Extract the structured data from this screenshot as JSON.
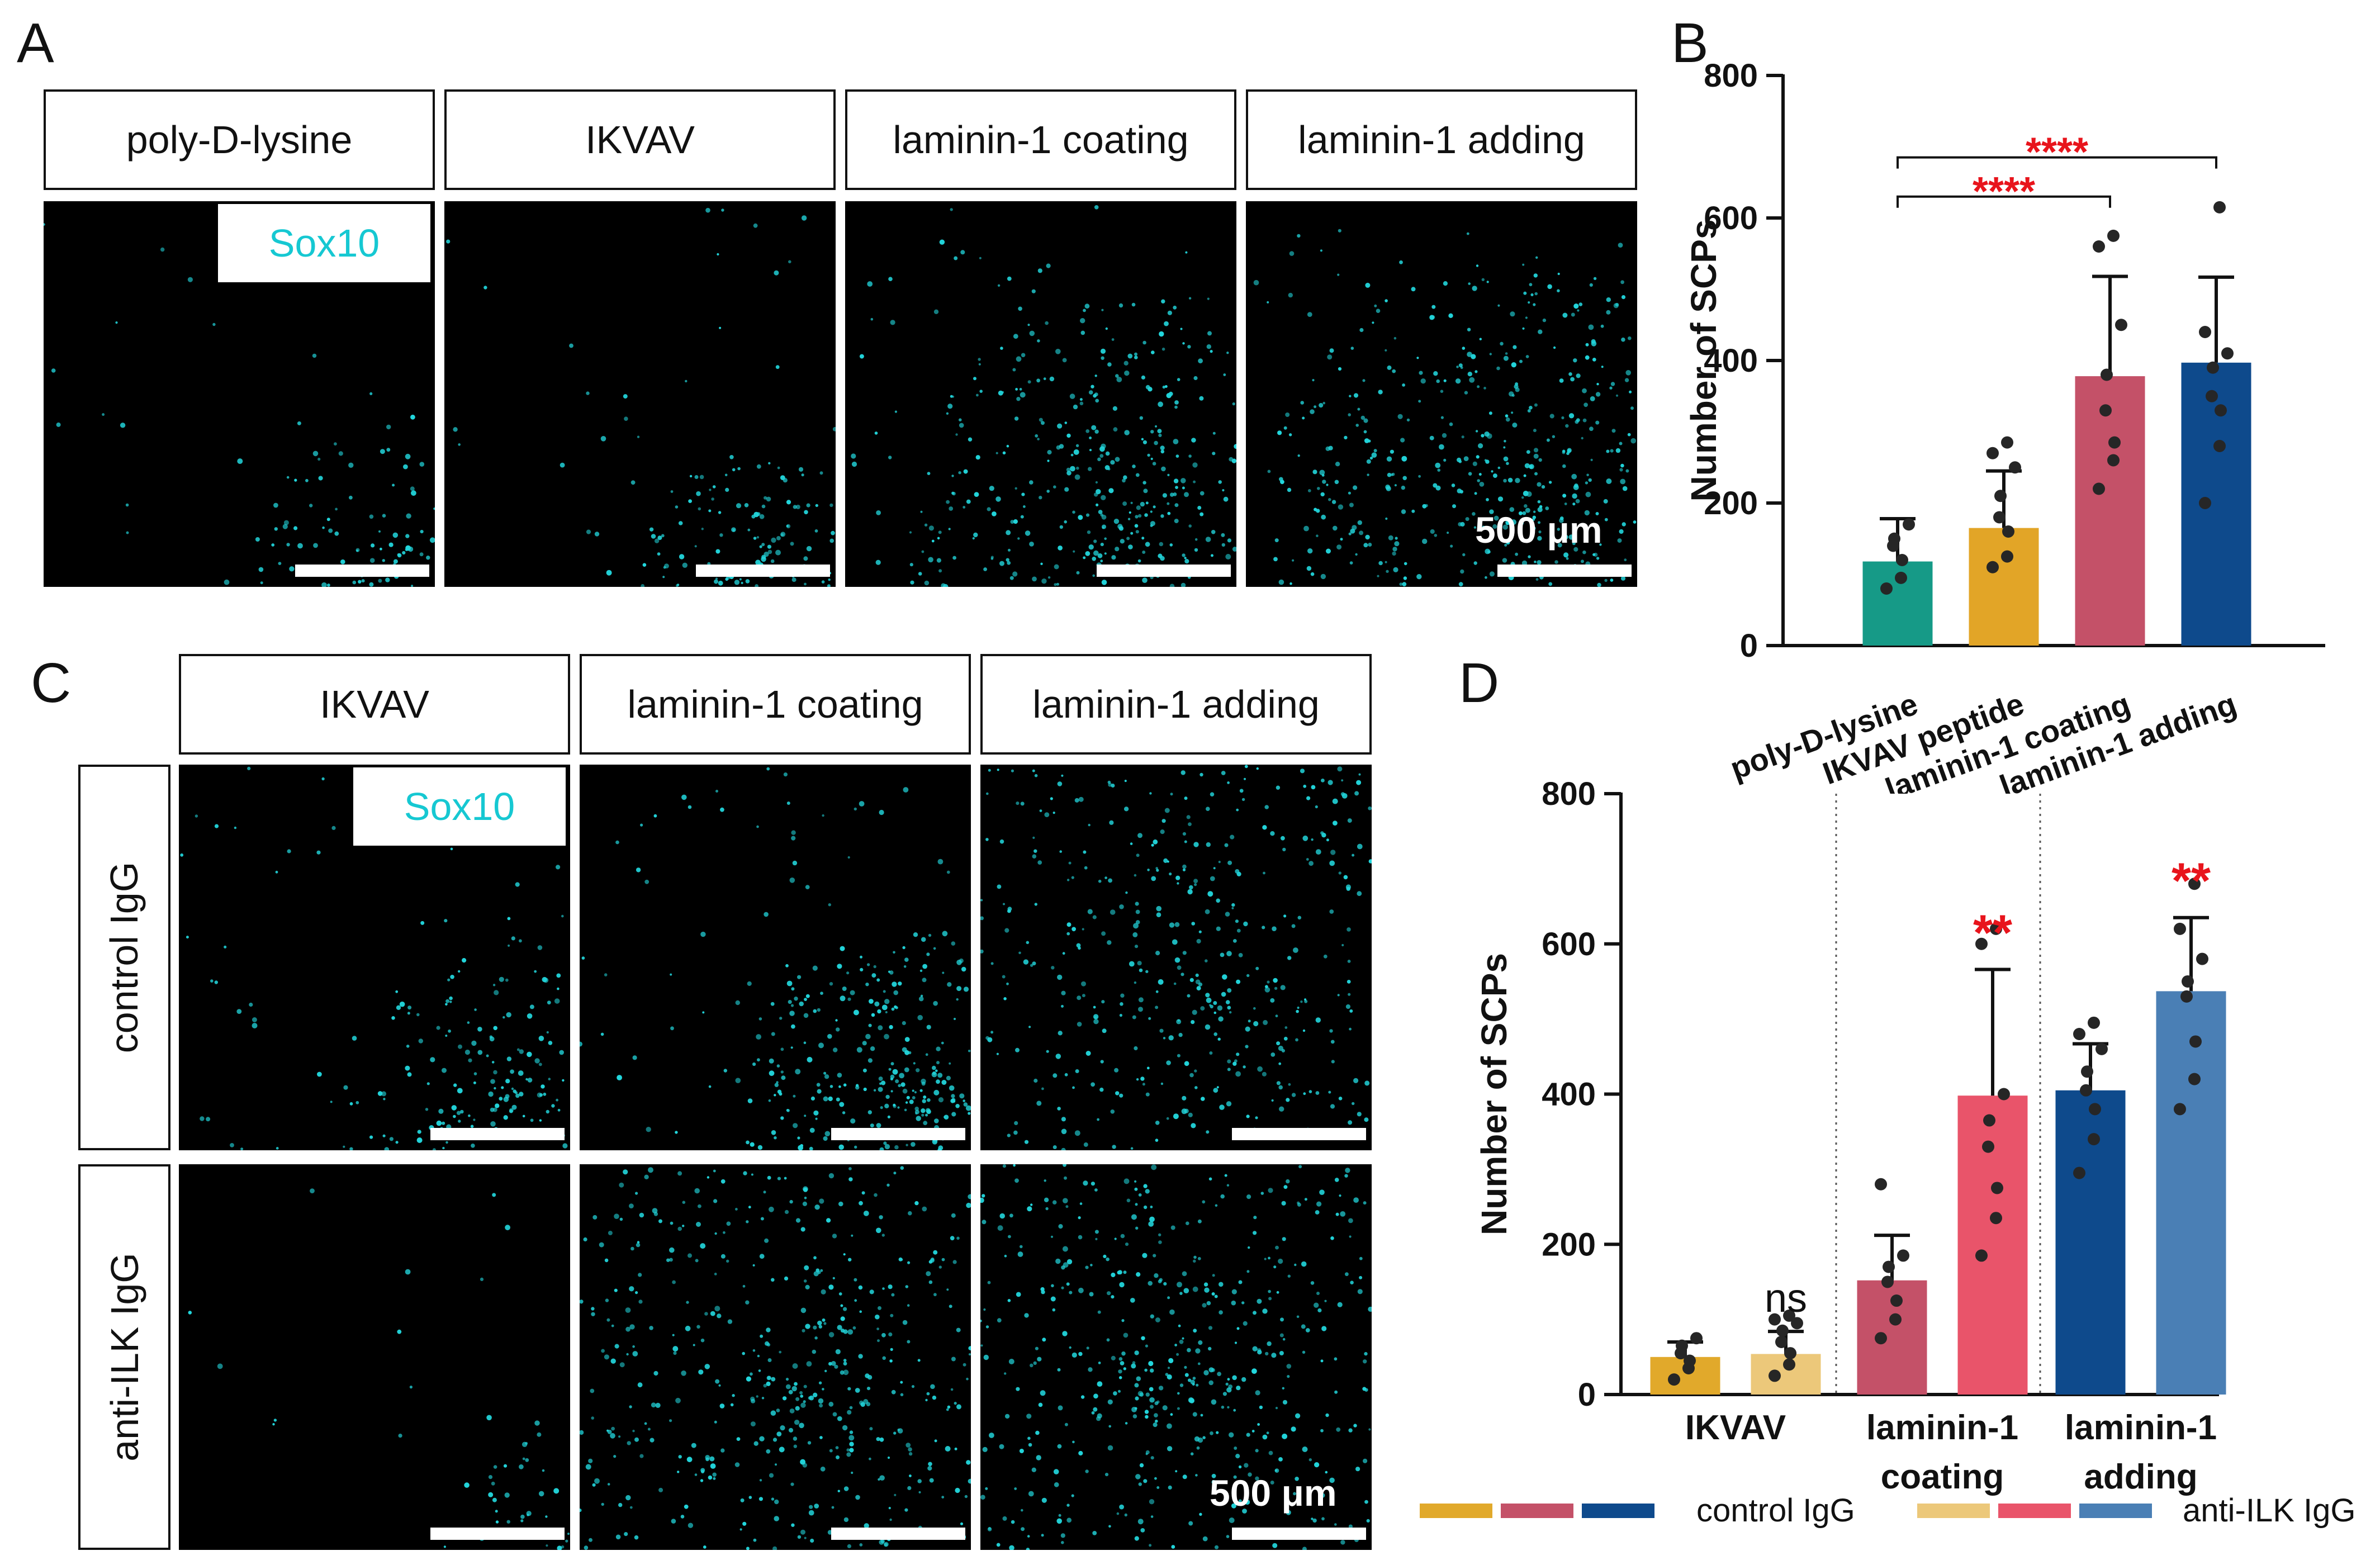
{
  "panels": {
    "a": "A",
    "b": "B",
    "c": "C",
    "d": "D"
  },
  "panel_a": {
    "labels": [
      "poly-D-lysine",
      "IKVAV",
      "laminin-1 coating",
      "laminin-1 adding"
    ],
    "stain": "Sox10",
    "scale": "500 μm"
  },
  "panel_c": {
    "column_labels": [
      "IKVAV",
      "laminin-1 coating",
      "laminin-1 adding"
    ],
    "row_labels": [
      "control IgG",
      "anti-ILK IgG"
    ],
    "stain": "Sox10",
    "scale": "500 μm"
  },
  "chart_data": [
    {
      "id": "B",
      "type": "bar",
      "ylabel": "Number of SCPs",
      "ylim": [
        0,
        800
      ],
      "yticks": [
        0,
        200,
        400,
        600,
        800
      ],
      "categories": [
        "poly-D-lysine",
        "IKVAV peptide",
        "laminin-1 coating",
        "laminin-1 adding"
      ],
      "values": [
        118,
        165,
        378,
        397
      ],
      "errors": [
        60,
        80,
        140,
        120
      ],
      "colors": [
        "#169a87",
        "#e2a527",
        "#c45168",
        "#0e4a8c"
      ],
      "points": [
        [
          80,
          95,
          120,
          140,
          150,
          170
        ],
        [
          110,
          125,
          160,
          180,
          210,
          250,
          270,
          285
        ],
        [
          220,
          260,
          285,
          330,
          380,
          450,
          560,
          575
        ],
        [
          200,
          280,
          330,
          350,
          390,
          410,
          440,
          615
        ]
      ],
      "significance": [
        {
          "from": 0,
          "to": 2,
          "label": "****"
        },
        {
          "from": 0,
          "to": 3,
          "label": "****"
        }
      ]
    },
    {
      "id": "D",
      "type": "bar",
      "ylabel": "Number of SCPs",
      "ylim": [
        0,
        800
      ],
      "yticks": [
        0,
        200,
        400,
        600,
        800
      ],
      "groups": [
        {
          "label": "IKVAV",
          "label_lines": [
            "IKVAV"
          ]
        },
        {
          "label": "laminin-1 coating",
          "label_lines": [
            "laminin-1",
            "coating"
          ]
        },
        {
          "label": "laminin-1 adding",
          "label_lines": [
            "laminin-1",
            "adding"
          ]
        }
      ],
      "series": [
        {
          "name": "control IgG",
          "values": [
            50,
            152,
            405
          ],
          "errors": [
            20,
            60,
            62
          ],
          "colors": [
            "#e1a92b",
            "#c45168",
            "#0e4a8c"
          ]
        },
        {
          "name": "anti-ILK IgG",
          "values": [
            54,
            398,
            537
          ],
          "errors": [
            30,
            168,
            98
          ],
          "colors": [
            "#ecc87a",
            "#e9546a",
            "#4a7fb5"
          ]
        }
      ],
      "points": [
        [
          [
            20,
            35,
            45,
            55,
            65,
            75
          ],
          [
            25,
            40,
            55,
            70,
            85,
            95,
            100,
            105
          ]
        ],
        [
          [
            75,
            100,
            125,
            150,
            170,
            185,
            280
          ],
          [
            185,
            235,
            275,
            330,
            365,
            400,
            600,
            620
          ]
        ],
        [
          [
            295,
            340,
            380,
            405,
            430,
            460,
            480,
            495
          ],
          [
            380,
            420,
            470,
            530,
            550,
            580,
            620,
            680
          ]
        ]
      ],
      "significance": [
        "ns",
        "**",
        "**"
      ],
      "legend": [
        "control IgG",
        "anti-ILK IgG"
      ]
    }
  ]
}
